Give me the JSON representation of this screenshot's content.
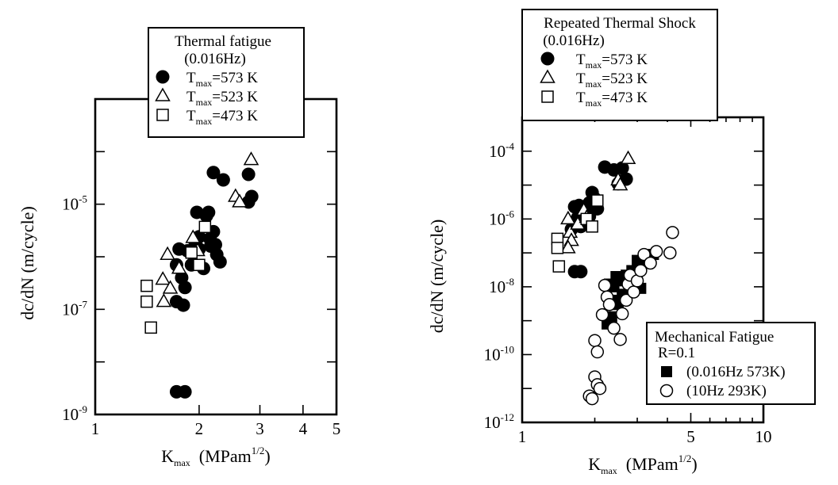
{
  "chart_data": [
    {
      "type": "scatter",
      "title": "",
      "xlabel": {
        "main": "K",
        "sub": "max",
        "unit": "(MPam",
        "sup": "1/2",
        "close": ")"
      },
      "ylabel": "dc/dN  (m/cycle)",
      "xscale": "log",
      "yscale": "log",
      "xlim": [
        1,
        5
      ],
      "ylim": [
        1e-09,
        0.001
      ],
      "x_ticks": [
        {
          "value": 1,
          "label": "1"
        },
        {
          "value": 2,
          "label": "2"
        },
        {
          "value": 3,
          "label": "3"
        },
        {
          "value": 4,
          "label": "4"
        },
        {
          "value": 5,
          "label": "5"
        }
      ],
      "y_ticks": [
        {
          "value": 1e-09,
          "base": "10",
          "exp": "-9"
        },
        {
          "value": 1e-07,
          "base": "10",
          "exp": "-7"
        },
        {
          "value": 1e-05,
          "base": "10",
          "exp": "-5"
        }
      ],
      "grid": false,
      "legend": {
        "placement": "top",
        "title": [
          "Thermal fatigue",
          "(0.016Hz)"
        ],
        "entries": [
          {
            "series": 0,
            "symbol": "T",
            "sub": "max",
            "rest": "=573 K"
          },
          {
            "series": 1,
            "symbol": "T",
            "sub": "max",
            "rest": "=523 K"
          },
          {
            "series": 2,
            "symbol": "T",
            "sub": "max",
            "rest": "=473 K"
          }
        ]
      },
      "series": [
        {
          "marker": "filled-circle",
          "points": [
            [
              1.72,
              2.7e-09
            ],
            [
              1.82,
              2.7e-09
            ],
            [
              1.72,
              1.4e-07
            ],
            [
              1.8,
              1.2e-07
            ],
            [
              1.72,
              7e-07
            ],
            [
              1.78,
              4e-07
            ],
            [
              1.82,
              2.6e-07
            ],
            [
              1.75,
              1.4e-06
            ],
            [
              1.85,
              1.3e-06
            ],
            [
              1.9,
              7e-07
            ],
            [
              1.95,
              1.8e-06
            ],
            [
              2.0,
              1.4e-06
            ],
            [
              2.0,
              2.4e-06
            ],
            [
              2.06,
              6e-07
            ],
            [
              1.97,
              7e-06
            ],
            [
              2.1,
              6e-06
            ],
            [
              2.13,
              7e-06
            ],
            [
              2.2,
              3e-06
            ],
            [
              2.15,
              2.2e-06
            ],
            [
              2.16,
              1.6e-06
            ],
            [
              2.25,
              1.1e-06
            ],
            [
              2.3,
              8e-07
            ],
            [
              2.23,
              1.7e-06
            ],
            [
              2.2,
              4e-05
            ],
            [
              2.35,
              2.9e-05
            ],
            [
              2.78,
              1.1e-05
            ],
            [
              2.84,
              1.4e-05
            ],
            [
              2.78,
              3.7e-05
            ]
          ]
        },
        {
          "marker": "open-triangle",
          "points": [
            [
              1.62,
              1.1e-06
            ],
            [
              1.57,
              3.7e-07
            ],
            [
              1.65,
              2.5e-07
            ],
            [
              1.58,
              1.4e-07
            ],
            [
              1.75,
              6e-07
            ],
            [
              1.92,
              2.3e-06
            ],
            [
              1.98,
              1.3e-06
            ],
            [
              2.55,
              1.4e-05
            ],
            [
              2.62,
              1.1e-05
            ],
            [
              2.83,
              7e-05
            ]
          ]
        },
        {
          "marker": "open-square",
          "points": [
            [
              1.41,
              2.8e-07
            ],
            [
              1.41,
              1.4e-07
            ],
            [
              1.45,
              4.5e-08
            ],
            [
              1.9,
              1.2e-06
            ],
            [
              2.0,
              7e-07
            ],
            [
              2.08,
              3.7e-06
            ]
          ]
        }
      ]
    },
    {
      "type": "scatter",
      "title": "",
      "xlabel": {
        "main": "K",
        "sub": "max",
        "unit": "(MPam",
        "sup": "1/2",
        "close": ")"
      },
      "ylabel": "dc/dN  (m/cycle)",
      "xscale": "log",
      "yscale": "log",
      "xlim": [
        1,
        10
      ],
      "ylim": [
        1e-12,
        0.001
      ],
      "x_ticks": [
        {
          "value": 1,
          "label": "1"
        },
        {
          "value": 5,
          "label": "5"
        },
        {
          "value": 10,
          "label": "10"
        }
      ],
      "y_ticks": [
        {
          "value": 1e-12,
          "base": "10",
          "exp": "-12"
        },
        {
          "value": 1e-10,
          "base": "10",
          "exp": "-10"
        },
        {
          "value": 1e-08,
          "base": "10",
          "exp": "-8"
        },
        {
          "value": 1e-06,
          "base": "10",
          "exp": "-6"
        },
        {
          "value": 0.0001,
          "base": "10",
          "exp": "-4"
        }
      ],
      "grid": false,
      "legend": {
        "placement": "top",
        "title": [
          "Repeated Thermal Shock",
          "(0.016Hz)"
        ],
        "entries": [
          {
            "series": 0,
            "symbol": "T",
            "sub": "max",
            "rest": "=573 K"
          },
          {
            "series": 1,
            "symbol": "T",
            "sub": "max",
            "rest": "=523 K"
          },
          {
            "series": 2,
            "symbol": "T",
            "sub": "max",
            "rest": "=473 K"
          }
        ]
      },
      "legend2": {
        "placement": "bottom-right",
        "title": [
          "Mechanical Fatigue",
          "R=0.1"
        ],
        "entries": [
          {
            "series": 3,
            "text": "(0.016Hz  573K)"
          },
          {
            "series": 4,
            "text": "(10Hz       293K)"
          }
        ]
      },
      "series": [
        {
          "marker": "filled-circle",
          "points": [
            [
              1.65,
              2.8e-08
            ],
            [
              1.75,
              2.8e-08
            ],
            [
              1.6,
              5e-07
            ],
            [
              1.65,
              2.3e-06
            ],
            [
              1.7,
              1.1e-06
            ],
            [
              1.75,
              6e-07
            ],
            [
              1.72,
              2.5e-06
            ],
            [
              1.8,
              1.5e-06
            ],
            [
              1.85,
              1.7e-06
            ],
            [
              1.9,
              1.2e-06
            ],
            [
              1.95,
              6e-06
            ],
            [
              2.0,
              4e-06
            ],
            [
              2.05,
              2e-06
            ],
            [
              1.9,
              3e-06
            ],
            [
              2.2,
              3.4e-05
            ],
            [
              2.4,
              2.8e-05
            ],
            [
              2.55,
              1.3e-05
            ],
            [
              2.7,
              1.5e-05
            ],
            [
              2.5,
              1.1e-05
            ],
            [
              2.6,
              3.2e-05
            ]
          ]
        },
        {
          "marker": "open-triangle",
          "points": [
            [
              1.55,
              1e-06
            ],
            [
              1.58,
              4e-07
            ],
            [
              1.6,
              2.3e-07
            ],
            [
              1.55,
              1.4e-07
            ],
            [
              1.7,
              7e-07
            ],
            [
              1.8,
              1.8e-06
            ],
            [
              1.85,
              1.1e-06
            ],
            [
              2.5,
              1.4e-05
            ],
            [
              2.55,
              1e-05
            ],
            [
              2.75,
              6e-05
            ]
          ]
        },
        {
          "marker": "open-square",
          "points": [
            [
              1.4,
              2.6e-07
            ],
            [
              1.4,
              1.4e-07
            ],
            [
              1.42,
              4e-08
            ],
            [
              1.85,
              1e-06
            ],
            [
              1.95,
              6e-07
            ],
            [
              2.05,
              3.5e-06
            ]
          ]
        },
        {
          "marker": "filled-square",
          "points": [
            [
              2.25,
              8e-10
            ],
            [
              2.35,
              1.3e-09
            ],
            [
              2.3,
              1.2e-08
            ],
            [
              2.4,
              1e-08
            ],
            [
              2.45,
              2e-08
            ],
            [
              2.55,
              1.5e-08
            ],
            [
              2.4,
              4e-09
            ],
            [
              2.5,
              3e-09
            ],
            [
              2.6,
              6e-09
            ],
            [
              2.7,
              2.2e-08
            ],
            [
              2.85,
              3e-08
            ],
            [
              3.0,
              1.8e-08
            ],
            [
              3.1,
              9e-09
            ],
            [
              3.2,
              5e-08
            ],
            [
              3.4,
              7e-08
            ],
            [
              3.5,
              9e-08
            ],
            [
              3.0,
              6e-08
            ]
          ]
        },
        {
          "marker": "open-circle",
          "points": [
            [
              1.9,
              6e-12
            ],
            [
              1.95,
              5e-12
            ],
            [
              2.0,
              2.2e-11
            ],
            [
              2.05,
              1.3e-11
            ],
            [
              2.1,
              1e-11
            ],
            [
              2.0,
              2.6e-10
            ],
            [
              2.05,
              1.2e-10
            ],
            [
              2.15,
              1.5e-09
            ],
            [
              2.2,
              1.1e-08
            ],
            [
              2.25,
              5e-09
            ],
            [
              2.3,
              3e-09
            ],
            [
              2.4,
              6e-10
            ],
            [
              2.55,
              2.8e-10
            ],
            [
              2.6,
              1.6e-09
            ],
            [
              2.7,
              4e-09
            ],
            [
              2.75,
              1.2e-08
            ],
            [
              2.8,
              2.2e-08
            ],
            [
              2.9,
              7e-09
            ],
            [
              3.0,
              1.5e-08
            ],
            [
              3.1,
              3e-08
            ],
            [
              3.2,
              9e-08
            ],
            [
              3.4,
              5e-08
            ],
            [
              3.6,
              1.1e-07
            ],
            [
              4.2,
              4e-07
            ],
            [
              4.1,
              1e-07
            ]
          ]
        }
      ]
    }
  ]
}
